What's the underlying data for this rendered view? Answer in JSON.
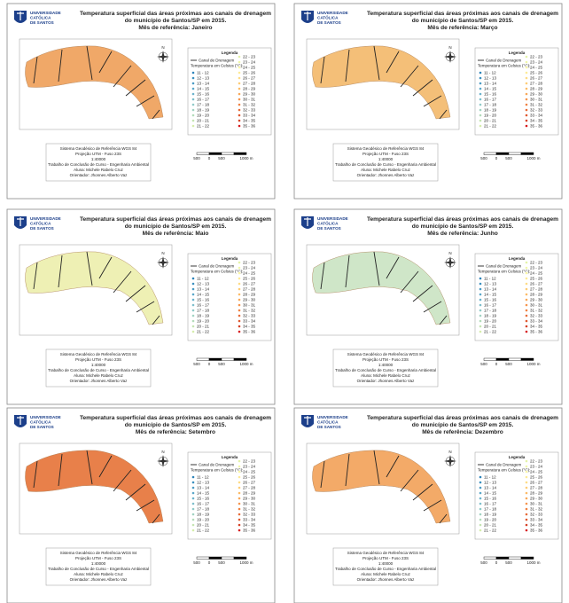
{
  "shared": {
    "university": [
      "UNIVERSIDADE",
      "CATÓLICA",
      "DE SANTOS"
    ],
    "title": [
      "Temperatura superficial das áreas próximas aos canais de drenagem",
      "do município de Santos/SP em 2015."
    ],
    "compass": "N",
    "legend_title": "Legenda",
    "legend_canal": "Canal de Drenagem",
    "legend_temp": "Temperatura em Celsius (°C):",
    "legend_items": [
      "11 - 12",
      "12 - 13",
      "13 - 14",
      "14 - 15",
      "15 - 16",
      "16 - 17",
      "17 - 18",
      "18 - 19",
      "19 - 20",
      "20 - 21",
      "21 - 22",
      "22 - 23",
      "23 - 24",
      "24 - 25",
      "25 - 26",
      "26 - 27",
      "27 - 28",
      "28 - 29",
      "29 - 30",
      "30 - 31",
      "31 - 32",
      "32 - 33",
      "33 - 34",
      "34 - 35",
      "35 - 36"
    ],
    "legend_colors": [
      "#2b83ba",
      "#3a8fbf",
      "#4a9bc4",
      "#5aa7c9",
      "#6bb3cc",
      "#7dbfcc",
      "#8fcac8",
      "#a1d3c2",
      "#b3dcba",
      "#c4e5b2",
      "#d5edab",
      "#e4f3a8",
      "#f0f7a8",
      "#fbf7a6",
      "#fdeb96",
      "#fddc85",
      "#fdcc75",
      "#fcbb66",
      "#f9a859",
      "#f6954d",
      "#f08142",
      "#e86c38",
      "#df572f",
      "#d54127",
      "#d7191c"
    ],
    "footer": [
      "Sistema Geodésico de Referência WGS 84",
      "Projeção UTM - Fuso 23S",
      "1:40000",
      "Trabalho de Conclusão de Curso - Engenharia Ambiental",
      "Aluna: Michele Rabelo Cruz",
      "Orientador: Jhonnes Alberto Vaz"
    ],
    "scale": [
      "500",
      "0",
      "500",
      "1000 m"
    ]
  },
  "panels": [
    {
      "month": "Mês de referência: Janeiro",
      "color": "#f0a868"
    },
    {
      "month": "Mês de referência: Março",
      "color": "#f4bf78"
    },
    {
      "month": "Mês de referência: Maio",
      "color": "#eef0b4"
    },
    {
      "month": "Mês de referência: Junho",
      "color": "#cfe6c8"
    },
    {
      "month": "Mês de referência: Setembro",
      "color": "#e8804a"
    },
    {
      "month": "Mês de referência: Dezembro",
      "color": "#f3aa68"
    }
  ]
}
